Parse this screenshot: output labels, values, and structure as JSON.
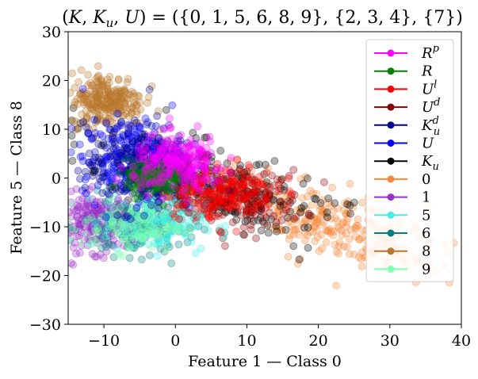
{
  "chart_data": {
    "type": "scatter",
    "title": "(K, K_u, U) = ({0, 1, 5, 6, 8, 9}, {2, 3, 4}, {7})",
    "xlabel": "Feature 1 — Class 0",
    "ylabel": "Feature 5 — Class 8",
    "xlim": [
      -15,
      40
    ],
    "ylim": [
      -30,
      30
    ],
    "xticks": [
      -10,
      0,
      10,
      20,
      30,
      40
    ],
    "yticks": [
      -30,
      -20,
      -10,
      0,
      10,
      20,
      30
    ],
    "xtick_labels": [
      "−10",
      "0",
      "10",
      "20",
      "30",
      "40"
    ],
    "ytick_labels": [
      "−30",
      "−20",
      "−10",
      "0",
      "10",
      "20",
      "30"
    ],
    "grid": false,
    "legend_position": "top-right",
    "series": [
      {
        "name": "R^p",
        "label_main": "R",
        "label_sup": "p",
        "label_sub": "",
        "color": "#ff00ff",
        "cluster": {
          "cx": 0.5,
          "cy": 3,
          "sx": 3.2,
          "sy": 2.8,
          "n": 220
        }
      },
      {
        "name": "R",
        "label_main": "R",
        "label_sup": "",
        "label_sub": "",
        "color": "#008000",
        "cluster": {
          "cx": -3,
          "cy": 0,
          "sx": 2.0,
          "sy": 1.8,
          "n": 160
        }
      },
      {
        "name": "U^l",
        "label_main": "U",
        "label_sup": "l",
        "label_sub": "",
        "color": "#ff0000",
        "cluster": {
          "cx": 6,
          "cy": -2.5,
          "sx": 4.0,
          "sy": 2.8,
          "n": 200
        }
      },
      {
        "name": "U^d",
        "label_main": "U",
        "label_sup": "d",
        "label_sub": "",
        "color": "#8b0000",
        "cluster": {
          "cx": 9,
          "cy": -4.5,
          "sx": 4.5,
          "sy": 3.0,
          "n": 150
        }
      },
      {
        "name": "K_u^d",
        "label_main": "K",
        "label_sup": "d",
        "label_sub": "u",
        "color": "#00008b",
        "cluster": {
          "cx": -5,
          "cy": 2,
          "sx": 3.8,
          "sy": 4.5,
          "n": 220
        }
      },
      {
        "name": "U",
        "label_main": "U",
        "label_sup": "",
        "label_sub": "",
        "color": "#0000ff",
        "cluster": {
          "cx": -6,
          "cy": 4,
          "sx": 3.5,
          "sy": 4.0,
          "n": 260
        }
      },
      {
        "name": "K_u",
        "label_main": "K",
        "label_sup": "",
        "label_sub": "u",
        "color": "#000000",
        "cluster": {
          "cx": 3,
          "cy": -2,
          "sx": 9.0,
          "sy": 5.0,
          "n": 320
        }
      },
      {
        "name": "0",
        "label_main": "0",
        "label_sup": "",
        "label_sub": "",
        "color": "#f4893a",
        "cluster": {
          "cx": 22,
          "cy": -12,
          "sx": 8.0,
          "sy": 4.5,
          "n": 280
        }
      },
      {
        "name": "1",
        "label_main": "1",
        "label_sup": "",
        "label_sub": "",
        "color": "#9b30c8",
        "cluster": {
          "cx": -11,
          "cy": -9,
          "sx": 2.6,
          "sy": 3.0,
          "n": 200
        }
      },
      {
        "name": "5",
        "label_main": "5",
        "label_sup": "",
        "label_sub": "",
        "color": "#40f0e6",
        "cluster": {
          "cx": -3,
          "cy": -9,
          "sx": 3.5,
          "sy": 3.0,
          "n": 170
        }
      },
      {
        "name": "6",
        "label_main": "6",
        "label_sup": "",
        "label_sub": "",
        "color": "#008080",
        "cluster": {
          "cx": -5,
          "cy": -10,
          "sx": 4.0,
          "sy": 3.0,
          "n": 170
        }
      },
      {
        "name": "8",
        "label_main": "8",
        "label_sup": "",
        "label_sub": "",
        "color": "#b8762a",
        "cluster": {
          "cx": -9.5,
          "cy": 16,
          "sx": 2.6,
          "sy": 2.8,
          "n": 240
        }
      },
      {
        "name": "9",
        "label_main": "9",
        "label_sup": "",
        "label_sub": "",
        "color": "#80ffb0",
        "cluster": {
          "cx": -6,
          "cy": -10,
          "sx": 3.5,
          "sy": 2.5,
          "n": 100
        }
      }
    ]
  }
}
